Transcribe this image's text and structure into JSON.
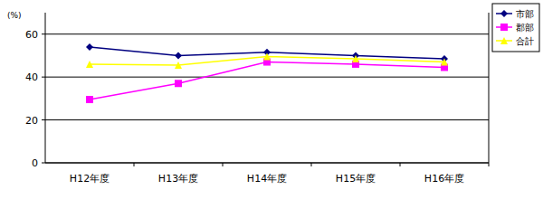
{
  "chart_data": {
    "type": "line",
    "y_label": "(%)",
    "categories": [
      "H12年度",
      "H13年度",
      "H14年度",
      "H15年度",
      "H16年度"
    ],
    "series": [
      {
        "name": "市部",
        "color": "#000080",
        "marker": "diamond",
        "values": [
          54,
          50,
          51.5,
          50,
          48.5
        ]
      },
      {
        "name": "郡部",
        "color": "#ff00ff",
        "marker": "square",
        "values": [
          29.5,
          37,
          47,
          46,
          44.5
        ]
      },
      {
        "name": "合計",
        "color": "#ffff00",
        "marker": "triangle",
        "values": [
          46,
          45.5,
          49.5,
          48.5,
          47
        ]
      }
    ],
    "ylim": [
      0,
      70
    ],
    "yticks": [
      0,
      20,
      40,
      60
    ],
    "grid": true,
    "legend": "top-right"
  }
}
